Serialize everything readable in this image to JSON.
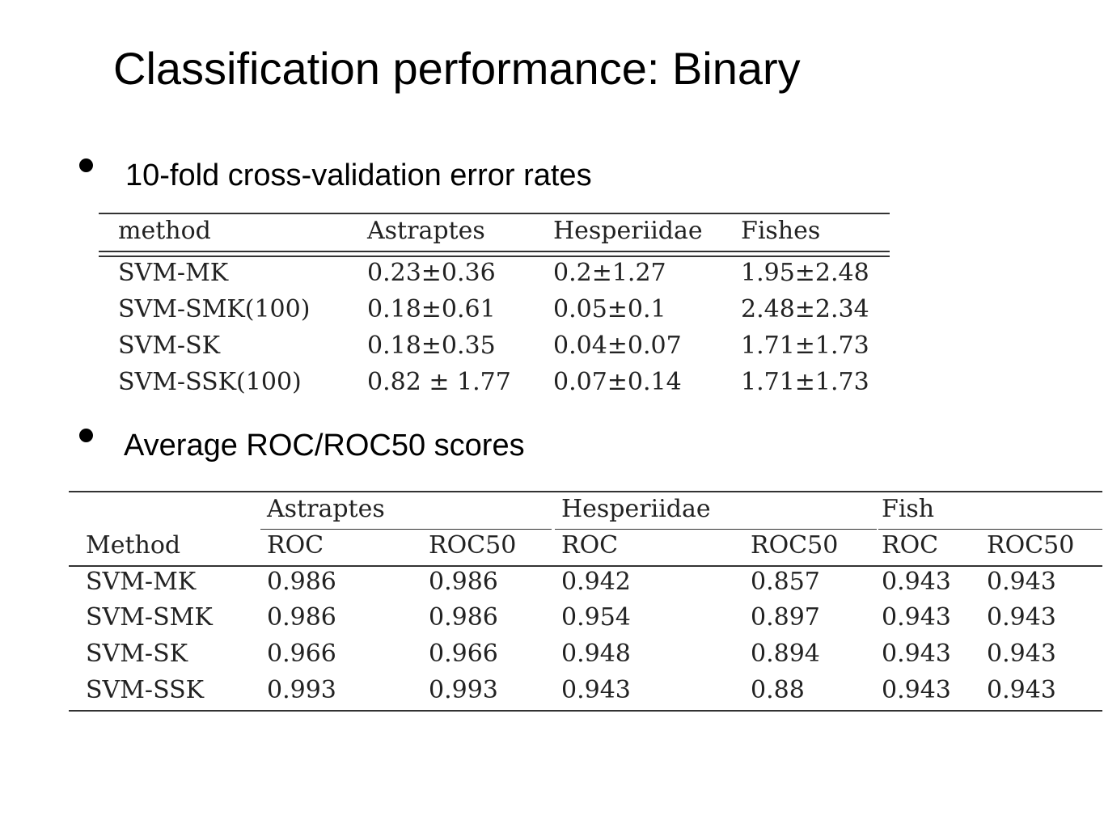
{
  "slide": {
    "title": "Classification performance:  Binary"
  },
  "bullets": [
    {
      "icon": "bullet-dot-icon",
      "text": "10-fold cross-validation error rates"
    },
    {
      "icon": "bullet-dot-icon",
      "text": "Average ROC/ROC50 scores"
    }
  ],
  "error_table": {
    "headers": [
      "method",
      "Astraptes",
      "Hesperiidae",
      "Fishes"
    ],
    "rows": [
      [
        "SVM-MK",
        "0.23±0.36",
        "0.2±1.27",
        "1.95±2.48"
      ],
      [
        "SVM-SMK(100)",
        "0.18±0.61",
        "0.05±0.1",
        "2.48±2.34"
      ],
      [
        "SVM-SK",
        "0.18±0.35",
        "0.04±0.07",
        "1.71±1.73"
      ],
      [
        "SVM-SSK(100)",
        "0.82 ± 1.77",
        "0.07±0.14",
        "1.71±1.73"
      ]
    ]
  },
  "roc_table": {
    "groups": [
      "Astraptes",
      "Hesperiidae",
      "Fish"
    ],
    "headers": [
      "Method",
      "ROC",
      "ROC50",
      "ROC",
      "ROC50",
      "ROC",
      "ROC50"
    ],
    "rows": [
      [
        "SVM-MK",
        "0.986",
        "0.986",
        "0.942",
        "0.857",
        "0.943",
        "0.943"
      ],
      [
        "SVM-SMK",
        "0.986",
        "0.986",
        "0.954",
        "0.897",
        "0.943",
        "0.943"
      ],
      [
        "SVM-SK",
        "0.966",
        "0.966",
        "0.948",
        "0.894",
        "0.943",
        "0.943"
      ],
      [
        "SVM-SSK",
        "0.993",
        "0.993",
        "0.943",
        "0.88",
        "0.943",
        "0.943"
      ]
    ]
  }
}
